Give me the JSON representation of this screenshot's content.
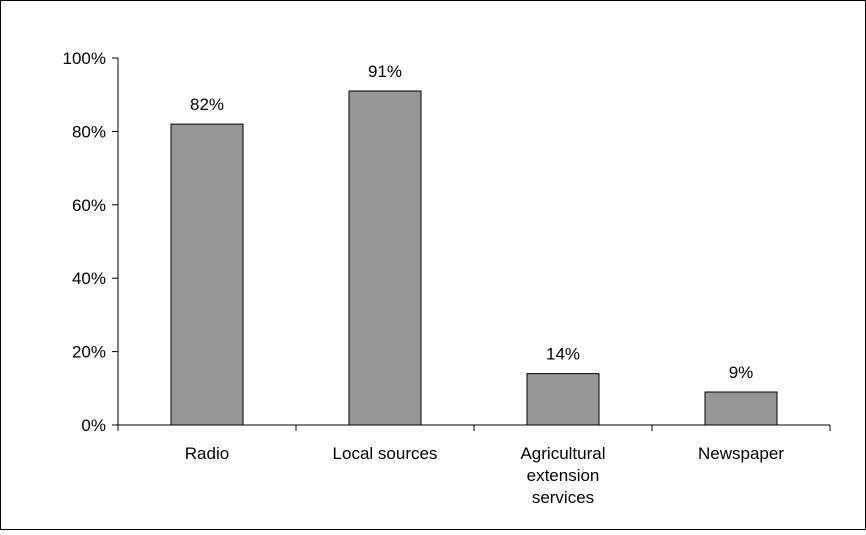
{
  "chart_data": {
    "type": "bar",
    "title": "",
    "xlabel": "",
    "ylabel": "",
    "categories": [
      [
        "Radio"
      ],
      [
        "Local sources"
      ],
      [
        "Agricultural",
        "extension",
        "services"
      ],
      [
        "Newspaper"
      ]
    ],
    "values": [
      82,
      91,
      14,
      9
    ],
    "data_labels": [
      "82%",
      "91%",
      "14%",
      "9%"
    ],
    "ylim": [
      0,
      100
    ],
    "yticks": [
      0,
      20,
      40,
      60,
      80,
      100
    ],
    "ytick_labels": [
      "0%",
      "20%",
      "40%",
      "60%",
      "80%",
      "100%"
    ],
    "grid": false,
    "legend": "none",
    "colors": {
      "bar_fill": "#969696",
      "bar_stroke": "#000000",
      "axis": "#000000",
      "frame": "#000000",
      "background": "#ffffff"
    }
  }
}
